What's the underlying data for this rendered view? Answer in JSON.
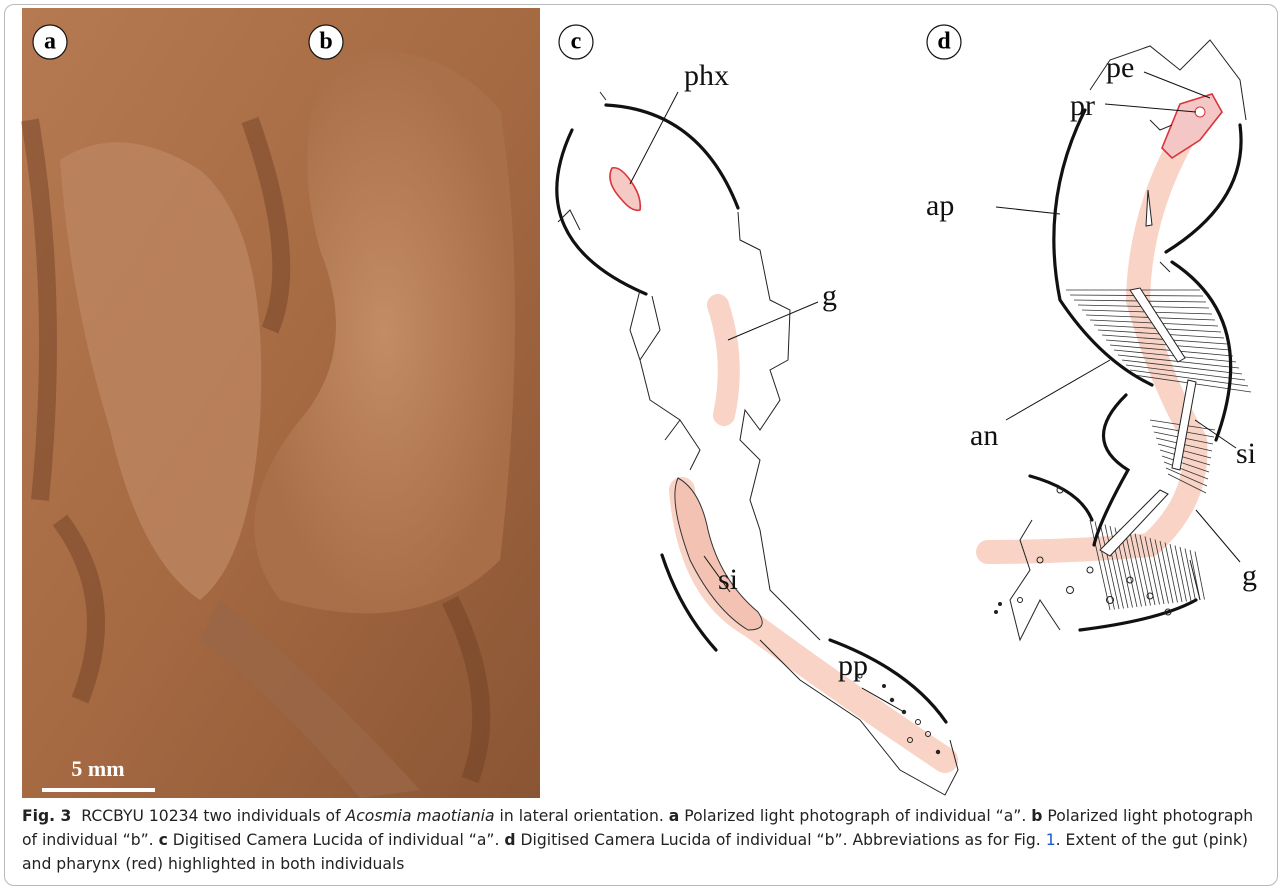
{
  "panels": [
    {
      "label": "a"
    },
    {
      "label": "b"
    },
    {
      "label": "c"
    },
    {
      "label": "d"
    }
  ],
  "scale_bar": "5 mm",
  "annotations": {
    "c": [
      "phx",
      "g",
      "si",
      "pp"
    ],
    "d": [
      "pe",
      "pr",
      "ap",
      "an",
      "si",
      "g"
    ]
  },
  "caption": {
    "label": "Fig. 3",
    "parts": [
      "RCCBYU 10234 two individuals of ",
      "Acosmia maotiania",
      " in lateral orientation. ",
      "a",
      " Polarized light photograph of individual “a”. ",
      "b",
      " Polarized light photograph of individual “b”. ",
      "c",
      " Digitised Camera Lucida of individual “a”. ",
      "d",
      " Digitised Camera Lucida of individual “b”. Abbreviations as for Fig. ",
      "1",
      ". Extent of the gut (pink) and pharynx (red) highlighted in both individuals"
    ]
  }
}
